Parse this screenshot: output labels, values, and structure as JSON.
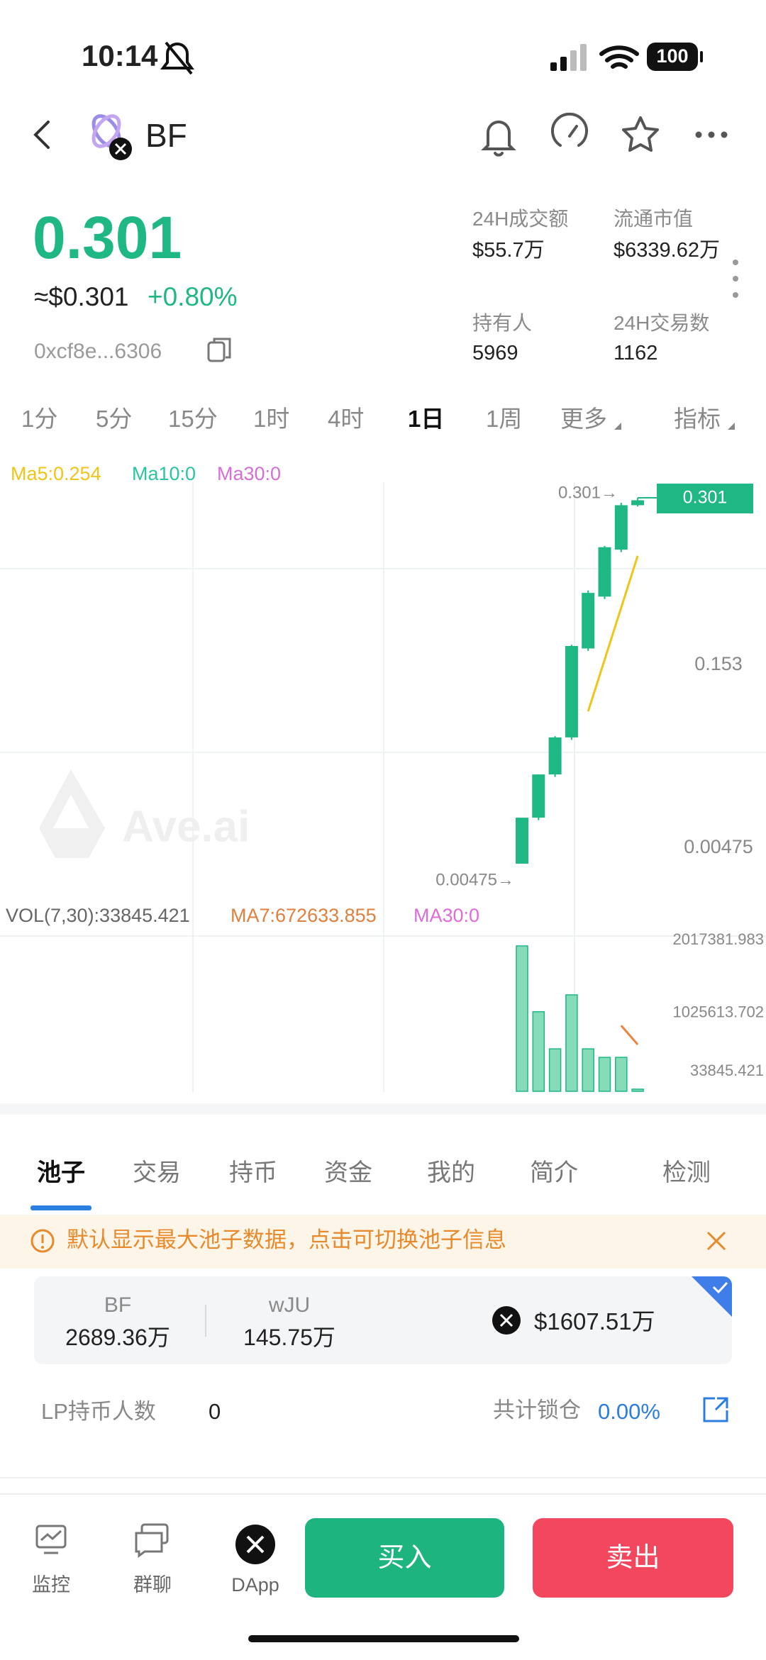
{
  "status_bar": {
    "time": "10:14",
    "battery": "100"
  },
  "header": {
    "symbol": "BF"
  },
  "price": {
    "value": "0.301",
    "usd": "≈$0.301",
    "change": "+0.80%",
    "address": "0xcf8e...6306"
  },
  "stats": [
    {
      "label": "24H成交额",
      "value": "$55.7万"
    },
    {
      "label": "流通市值",
      "value": "$6339.62万"
    },
    {
      "label": "持有人",
      "value": "5969"
    },
    {
      "label": "24H交易数",
      "value": "1162"
    }
  ],
  "timeframes": {
    "items": [
      "1分",
      "5分",
      "15分",
      "1时",
      "4时",
      "1日",
      "1周",
      "更多",
      "指标"
    ],
    "active": 5
  },
  "kline": {
    "type": "candlestick",
    "legend": [
      "Ma5:0.254",
      "Ma10:0",
      "Ma30:0"
    ],
    "watermark": "Ave.ai",
    "color": "#1fb784",
    "ma5_color": "#f0c419",
    "ylim": [
      0.00475,
      0.301
    ],
    "yticks": [
      0.00475,
      0.153,
      0.301
    ],
    "max_marker": {
      "value": 0.301,
      "label": "0.301→"
    },
    "min_marker": {
      "value": 0.00475,
      "label": "0.00475→"
    },
    "candles": [
      {
        "open": 0.00475,
        "high": 0.042,
        "low": 0.00475,
        "close": 0.042
      },
      {
        "open": 0.042,
        "high": 0.077,
        "low": 0.04,
        "close": 0.077
      },
      {
        "open": 0.077,
        "high": 0.108,
        "low": 0.075,
        "close": 0.107
      },
      {
        "open": 0.107,
        "high": 0.182,
        "low": 0.105,
        "close": 0.181
      },
      {
        "open": 0.179,
        "high": 0.226,
        "low": 0.177,
        "close": 0.224
      },
      {
        "open": 0.221,
        "high": 0.262,
        "low": 0.219,
        "close": 0.261
      },
      {
        "open": 0.259,
        "high": 0.297,
        "low": 0.257,
        "close": 0.295
      },
      {
        "open": 0.295,
        "high": 0.301,
        "low": 0.294,
        "close": 0.299
      }
    ],
    "ma5": [
      null,
      null,
      null,
      null,
      0.128,
      0.17,
      0.212,
      0.254
    ]
  },
  "volume": {
    "legend": [
      "VOL(7,30):33845.421",
      "MA7:672633.855",
      "MA30:0"
    ],
    "values": [
      2017381.983,
      1120000,
      613000,
      1350000,
      613000,
      497000,
      497000,
      33845.421
    ],
    "ma7": [
      null,
      null,
      null,
      null,
      null,
      null,
      931000,
      672633.855
    ],
    "ylim": [
      33845.421,
      2017381.983
    ],
    "yticks": [
      33845.421,
      1025613.702,
      2017381.983
    ],
    "color": "#86dcb9",
    "ma7_color": "#e8843f"
  },
  "tabs": {
    "items": [
      "池子",
      "交易",
      "持币",
      "资金",
      "我的",
      "简介",
      "检测"
    ],
    "active": 0
  },
  "notice": "默认显示最大池子数据，点击可切换池子信息",
  "pool": {
    "token_a": {
      "symbol": "BF",
      "amount": "2689.36万"
    },
    "token_b": {
      "symbol": "wJU",
      "amount": "145.75万"
    },
    "liquidity": "$1607.51万"
  },
  "lp": {
    "holders_label": "LP持币人数",
    "holders": "0",
    "locked_label": "共计锁仓",
    "locked": "0.00%"
  },
  "nav": {
    "items": [
      "监控",
      "群聊",
      "DApp"
    ],
    "buy": "买入",
    "sell": "卖出"
  }
}
